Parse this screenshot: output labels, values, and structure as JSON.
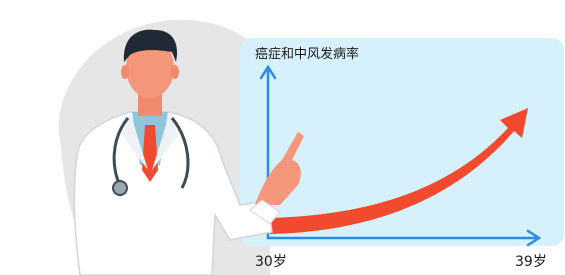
{
  "chart_panel": {
    "y_axis_label": "癌症和中风发病率",
    "x_start_label": "30岁",
    "x_end_label": "39岁"
  }
}
